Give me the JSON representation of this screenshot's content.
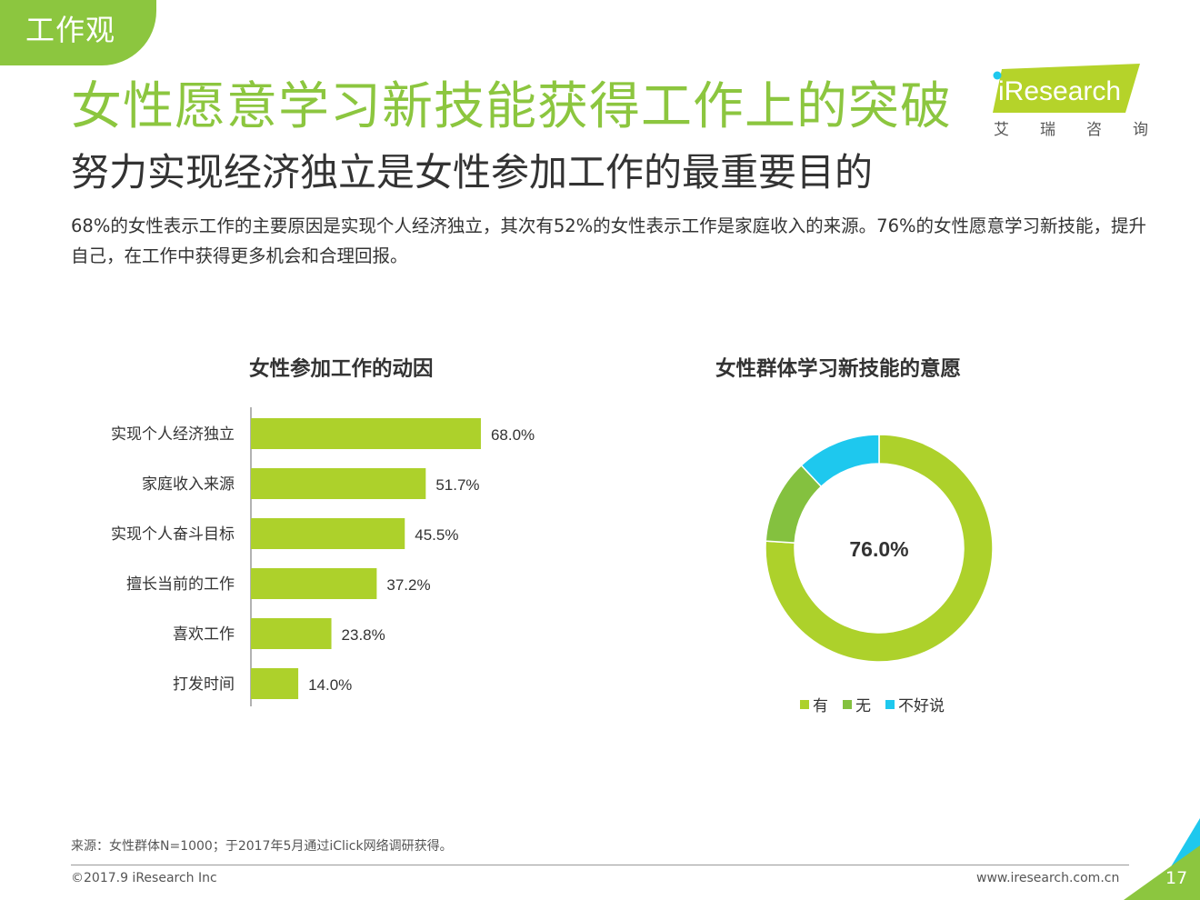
{
  "section_tag": "工作观",
  "header": {
    "title": "女性愿意学习新技能获得工作上的突破",
    "subtitle": "努力实现经济独立是女性参加工作的最重要目的",
    "summary": "68%的女性表示工作的主要原因是实现个人经济独立，其次有52%的女性表示工作是家庭收入的来源。76%的女性愿意学习新技能，提升自己，在工作中获得更多机会和合理回报。"
  },
  "logo": {
    "brand": "iResearch",
    "cn_chars": [
      "艾",
      "瑞",
      "咨",
      "询"
    ]
  },
  "colors": {
    "brand_green": "#8cc63f",
    "bar_green": "#add12b",
    "mid_green": "#84c13f",
    "cyan": "#1ec8ee",
    "text": "#333333"
  },
  "chart_data": [
    {
      "type": "bar",
      "orientation": "horizontal",
      "title": "女性参加工作的动因",
      "categories": [
        "实现个人经济独立",
        "家庭收入来源",
        "实现个人奋斗目标",
        "擅长当前的工作",
        "喜欢工作",
        "打发时间"
      ],
      "values": [
        68.0,
        51.7,
        45.5,
        37.2,
        23.8,
        14.0
      ],
      "value_labels": [
        "68.0%",
        "51.7%",
        "45.5%",
        "37.2%",
        "23.8%",
        "14.0%"
      ],
      "xlim": [
        0,
        100
      ],
      "color": "#add12b",
      "grid": false
    },
    {
      "type": "pie",
      "donut": true,
      "title": "女性群体学习新技能的意愿",
      "center_label": "76.0%",
      "slices": [
        {
          "name": "有",
          "value": 76.0,
          "color": "#add12b"
        },
        {
          "name": "无",
          "value": 12.0,
          "color": "#84c13f"
        },
        {
          "name": "不好说",
          "value": 12.0,
          "color": "#1ec8ee"
        }
      ],
      "legend_position": "bottom"
    }
  ],
  "footer": {
    "source": "来源：女性群体N=1000；于2017年5月通过iClick网络调研获得。",
    "copyright": "©2017.9 iResearch Inc",
    "website": "www.iresearch.com.cn",
    "page_number": "17"
  }
}
